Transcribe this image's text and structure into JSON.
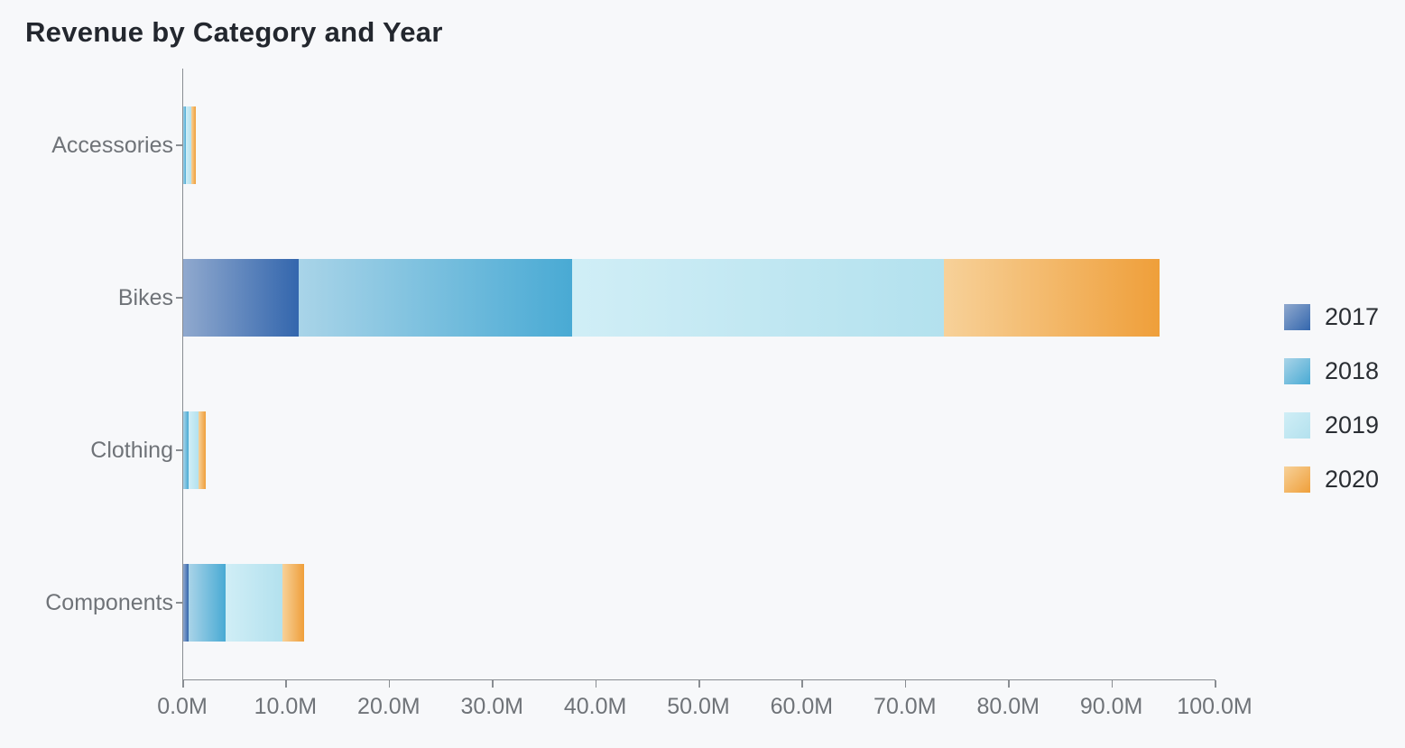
{
  "chart_data": {
    "type": "bar",
    "orientation": "horizontal",
    "stacked": true,
    "title": "Revenue by Category and Year",
    "unit": "M",
    "categories": [
      "Accessories",
      "Bikes",
      "Clothing",
      "Components"
    ],
    "series": [
      {
        "name": "2017",
        "values": [
          0,
          11.2,
          0,
          0.5
        ],
        "color_start": "#90A9CE",
        "color_end": "#3366AD"
      },
      {
        "name": "2018",
        "values": [
          0.25,
          26.5,
          0.5,
          3.6
        ],
        "color_start": "#A9D4E8",
        "color_end": "#49AAD4"
      },
      {
        "name": "2019",
        "values": [
          0.5,
          36.0,
          1.0,
          5.5
        ],
        "color_start": "#D0EEF6",
        "color_end": "#B3E1EE"
      },
      {
        "name": "2020",
        "values": [
          0.45,
          20.9,
          0.65,
          2.1
        ],
        "color_start": "#F7D199",
        "color_end": "#EF9F3A"
      }
    ],
    "category_totals": [
      1.2,
      94.6,
      2.15,
      11.7
    ],
    "xlim": [
      0,
      100
    ],
    "x_tick_values": [
      0,
      10,
      20,
      30,
      40,
      50,
      60,
      70,
      80,
      90,
      100
    ],
    "x_tick_labels": [
      "0.0M",
      "10.0M",
      "20.0M",
      "30.0M",
      "40.0M",
      "50.0M",
      "60.0M",
      "70.0M",
      "80.0M",
      "90.0M",
      "100.0M"
    ],
    "legend_entries": [
      "2017",
      "2018",
      "2019",
      "2020"
    ],
    "legend_position": "right",
    "grid": false
  },
  "colors": {
    "background": "#F7F8FA",
    "axis_line": "#898D92",
    "title_text": "#23272E",
    "axis_label_text": "#6F7378",
    "legend_text": "#2A2E33"
  }
}
